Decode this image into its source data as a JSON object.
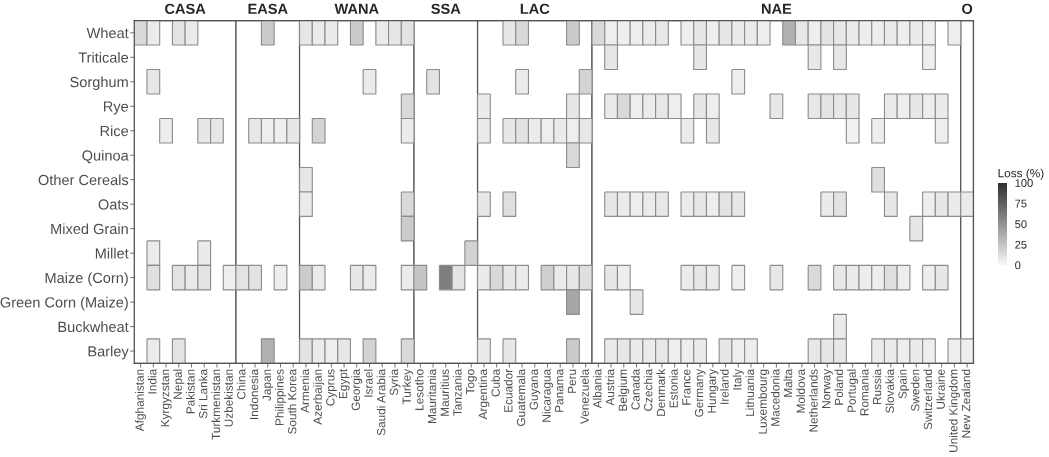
{
  "chart_data": {
    "type": "heatmap",
    "clim": [
      0,
      100
    ],
    "cticks": [
      0,
      25,
      50,
      75,
      100
    ],
    "clabel": "Loss (%)",
    "bands": [
      {
        "axis": "x",
        "from": "Afghanistan",
        "to": "Uzbekistan",
        "label": "CASA",
        "color": "#ffffff"
      },
      {
        "axis": "x",
        "from": "China",
        "to": "South Korea",
        "label": "EASA",
        "color": "#ffffff"
      },
      {
        "axis": "x",
        "from": "Armenia",
        "to": "Turkey",
        "label": "WANA",
        "color": "#ffffff"
      },
      {
        "axis": "x",
        "from": "Lesotho",
        "to": "Togo",
        "label": "SSA",
        "color": "#ffffff"
      },
      {
        "axis": "x",
        "from": "Argentina",
        "to": "Venezuela",
        "label": "LAC",
        "color": "#ffffff"
      },
      {
        "axis": "x",
        "from": "Albania",
        "to": "United Kingdom",
        "label": "NAE",
        "color": "#ffffff"
      },
      {
        "axis": "x",
        "from": "New Zealand",
        "to": "New Zealand",
        "label": "O",
        "color": "#ffffff"
      }
    ],
    "categories": [
      "Afghanistan",
      "India",
      "Kyrgyzstan",
      "Nepal",
      "Pakistan",
      "Sri Lanka",
      "Turkmenistan",
      "Uzbekistan",
      "China",
      "Indonesia",
      "Japan",
      "Philippines",
      "South Korea",
      "Armenia",
      "Azerbaijan",
      "Cyprus",
      "Egypt",
      "Georgia",
      "Israel",
      "Saudi Arabia",
      "Syria",
      "Turkey",
      "Lesotho",
      "Mauritania",
      "Mauritius",
      "Tanzania",
      "Togo",
      "Argentina",
      "Cuba",
      "Ecuador",
      "Guatemala",
      "Guyana",
      "Nicaragua",
      "Panama",
      "Peru",
      "Venezuela",
      "Albania",
      "Austria",
      "Belgium",
      "Canada",
      "Czechia",
      "Denmark",
      "Estonia",
      "France",
      "Germany",
      "Hungary",
      "Ireland",
      "Italy",
      "Lithuania",
      "Luxembourg",
      "Macedonia",
      "Malta",
      "Moldova",
      "Netherlands",
      "Norway",
      "Poland",
      "Portugal",
      "Romania",
      "Russia",
      "Slovakia",
      "Spain",
      "Sweden",
      "Switzerland",
      "Ukraine",
      "United Kingdom",
      "New Zealand"
    ],
    "y_categories": [
      "Wheat",
      "Triticale",
      "Sorghum",
      "Rye",
      "Rice",
      "Quinoa",
      "Other Cereals",
      "Oats",
      "Mixed Grain",
      "Millet",
      "Maize (Corn)",
      "Green Corn (Maize)",
      "Buckwheat",
      "Barley"
    ],
    "cells": [
      [
        15,
        6,
        null,
        10,
        6,
        null,
        null,
        null,
        null,
        null,
        22,
        null,
        null,
        8,
        6,
        6,
        null,
        22,
        null,
        6,
        8,
        10,
        null,
        null,
        null,
        null,
        null,
        null,
        null,
        8,
        15,
        null,
        null,
        null,
        22,
        null,
        15,
        5,
        5,
        5,
        6,
        8,
        null,
        5,
        8,
        5,
        8,
        6,
        6,
        5,
        null,
        35,
        8,
        5,
        10,
        8,
        6,
        5,
        5,
        6,
        5,
        6,
        5,
        null,
        5,
        null
      ],
      [
        null,
        null,
        null,
        null,
        null,
        null,
        null,
        null,
        null,
        null,
        null,
        null,
        null,
        null,
        null,
        null,
        null,
        null,
        null,
        null,
        null,
        null,
        null,
        null,
        null,
        null,
        null,
        null,
        null,
        null,
        null,
        null,
        null,
        null,
        null,
        null,
        null,
        8,
        null,
        null,
        null,
        null,
        null,
        null,
        8,
        null,
        null,
        null,
        null,
        null,
        null,
        null,
        null,
        8,
        null,
        8,
        null,
        null,
        null,
        null,
        null,
        null,
        5,
        null,
        null,
        null
      ],
      [
        null,
        8,
        null,
        null,
        null,
        null,
        null,
        null,
        null,
        null,
        null,
        null,
        null,
        null,
        null,
        null,
        null,
        null,
        6,
        null,
        null,
        null,
        null,
        10,
        null,
        null,
        null,
        null,
        null,
        null,
        6,
        null,
        null,
        null,
        null,
        18,
        null,
        null,
        null,
        null,
        null,
        null,
        null,
        null,
        null,
        null,
        null,
        5,
        null,
        null,
        null,
        null,
        null,
        null,
        null,
        null,
        null,
        null,
        null,
        null,
        null,
        null,
        null,
        null,
        null,
        null
      ],
      [
        null,
        null,
        null,
        null,
        null,
        null,
        null,
        null,
        null,
        null,
        null,
        null,
        null,
        null,
        null,
        null,
        null,
        null,
        null,
        null,
        null,
        15,
        null,
        null,
        null,
        null,
        null,
        6,
        null,
        null,
        null,
        null,
        null,
        null,
        8,
        null,
        null,
        6,
        15,
        5,
        6,
        8,
        5,
        null,
        8,
        5,
        null,
        null,
        null,
        null,
        8,
        null,
        null,
        8,
        10,
        8,
        8,
        null,
        null,
        6,
        5,
        8,
        5,
        6,
        null,
        null
      ],
      [
        null,
        null,
        5,
        null,
        null,
        8,
        8,
        null,
        null,
        8,
        5,
        5,
        8,
        null,
        18,
        null,
        null,
        null,
        null,
        null,
        null,
        6,
        null,
        null,
        null,
        null,
        null,
        6,
        null,
        8,
        10,
        6,
        5,
        6,
        5,
        8,
        null,
        null,
        null,
        null,
        null,
        null,
        null,
        6,
        null,
        8,
        null,
        null,
        null,
        null,
        null,
        null,
        null,
        null,
        null,
        null,
        3,
        null,
        5,
        null,
        null,
        null,
        null,
        5,
        null,
        null
      ],
      [
        null,
        null,
        null,
        null,
        null,
        null,
        null,
        null,
        null,
        null,
        null,
        null,
        null,
        null,
        null,
        null,
        null,
        null,
        null,
        null,
        null,
        null,
        null,
        null,
        null,
        null,
        null,
        null,
        null,
        null,
        null,
        null,
        null,
        null,
        15,
        null,
        null,
        null,
        null,
        null,
        null,
        null,
        null,
        null,
        null,
        null,
        null,
        null,
        null,
        null,
        null,
        null,
        null,
        null,
        null,
        null,
        null,
        null,
        null,
        null,
        null,
        null,
        null,
        null,
        null,
        null
      ],
      [
        null,
        null,
        null,
        null,
        null,
        null,
        null,
        null,
        null,
        null,
        null,
        null,
        null,
        8,
        null,
        null,
        null,
        null,
        null,
        null,
        null,
        null,
        null,
        null,
        null,
        null,
        null,
        null,
        null,
        null,
        null,
        null,
        null,
        null,
        null,
        null,
        null,
        null,
        null,
        null,
        null,
        null,
        null,
        null,
        null,
        null,
        null,
        null,
        null,
        null,
        null,
        null,
        null,
        null,
        null,
        null,
        null,
        null,
        12,
        null,
        null,
        null,
        null,
        null,
        null,
        null
      ],
      [
        null,
        null,
        null,
        null,
        null,
        null,
        null,
        null,
        null,
        null,
        null,
        null,
        null,
        6,
        null,
        null,
        null,
        null,
        null,
        null,
        null,
        15,
        null,
        null,
        null,
        null,
        null,
        8,
        null,
        12,
        null,
        null,
        null,
        null,
        null,
        null,
        null,
        8,
        6,
        5,
        6,
        8,
        null,
        6,
        8,
        5,
        10,
        8,
        null,
        null,
        null,
        null,
        null,
        null,
        6,
        10,
        null,
        null,
        null,
        8,
        null,
        null,
        5,
        8,
        6,
        6
      ],
      [
        null,
        null,
        null,
        null,
        null,
        null,
        null,
        null,
        null,
        null,
        null,
        null,
        null,
        null,
        null,
        null,
        null,
        null,
        null,
        null,
        null,
        22,
        null,
        null,
        null,
        null,
        null,
        null,
        null,
        null,
        null,
        null,
        null,
        null,
        null,
        null,
        null,
        null,
        null,
        null,
        null,
        null,
        null,
        null,
        null,
        null,
        null,
        null,
        null,
        null,
        null,
        null,
        null,
        null,
        null,
        null,
        null,
        null,
        null,
        null,
        null,
        8,
        null,
        null,
        null,
        null
      ],
      [
        null,
        6,
        null,
        null,
        null,
        6,
        null,
        null,
        null,
        null,
        null,
        null,
        null,
        null,
        null,
        null,
        null,
        null,
        null,
        null,
        null,
        null,
        null,
        null,
        null,
        null,
        18,
        null,
        null,
        null,
        null,
        null,
        null,
        null,
        null,
        null,
        null,
        null,
        null,
        null,
        null,
        null,
        null,
        null,
        null,
        null,
        null,
        null,
        null,
        null,
        null,
        null,
        null,
        null,
        null,
        null,
        null,
        null,
        null,
        null,
        null,
        null,
        null,
        null,
        null,
        null
      ],
      [
        null,
        12,
        null,
        10,
        7,
        10,
        null,
        5,
        10,
        10,
        null,
        5,
        null,
        22,
        6,
        null,
        null,
        8,
        6,
        null,
        null,
        6,
        25,
        null,
        60,
        10,
        null,
        6,
        15,
        8,
        6,
        null,
        20,
        6,
        8,
        12,
        null,
        8,
        5,
        null,
        null,
        null,
        null,
        6,
        8,
        6,
        null,
        5,
        null,
        null,
        8,
        null,
        null,
        15,
        null,
        8,
        6,
        5,
        5,
        12,
        5,
        null,
        5,
        8,
        null,
        null
      ],
      [
        null,
        null,
        null,
        null,
        null,
        null,
        null,
        null,
        null,
        null,
        null,
        null,
        null,
        null,
        null,
        null,
        null,
        null,
        null,
        null,
        null,
        null,
        null,
        null,
        null,
        null,
        null,
        null,
        null,
        null,
        null,
        null,
        null,
        null,
        40,
        null,
        null,
        null,
        null,
        8,
        null,
        null,
        null,
        null,
        null,
        null,
        null,
        null,
        null,
        null,
        null,
        null,
        null,
        null,
        null,
        null,
        null,
        null,
        null,
        null,
        null,
        null,
        null,
        null,
        null,
        null
      ],
      [
        null,
        null,
        null,
        null,
        null,
        null,
        null,
        null,
        null,
        null,
        null,
        null,
        null,
        null,
        null,
        null,
        null,
        null,
        null,
        null,
        null,
        null,
        null,
        null,
        null,
        null,
        null,
        null,
        null,
        null,
        null,
        null,
        null,
        null,
        null,
        null,
        null,
        null,
        null,
        null,
        null,
        null,
        null,
        null,
        null,
        null,
        null,
        null,
        null,
        null,
        null,
        null,
        null,
        null,
        null,
        6,
        null,
        null,
        null,
        null,
        null,
        null,
        null,
        null,
        null,
        null
      ],
      [
        null,
        6,
        null,
        10,
        null,
        null,
        null,
        null,
        null,
        null,
        35,
        null,
        null,
        10,
        6,
        5,
        8,
        null,
        18,
        null,
        null,
        15,
        null,
        null,
        null,
        null,
        null,
        6,
        null,
        8,
        null,
        null,
        null,
        null,
        22,
        null,
        null,
        6,
        8,
        6,
        6,
        8,
        5,
        5,
        6,
        null,
        8,
        5,
        5,
        null,
        null,
        null,
        null,
        8,
        8,
        8,
        null,
        null,
        6,
        6,
        5,
        6,
        5,
        null,
        5,
        5
      ]
    ]
  }
}
